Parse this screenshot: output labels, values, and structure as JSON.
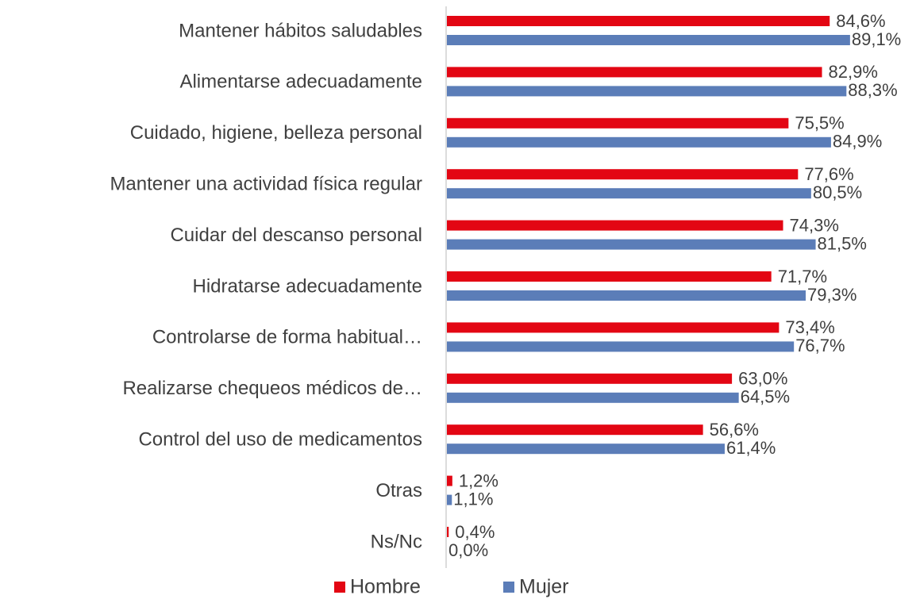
{
  "chart_data": {
    "type": "bar",
    "orientation": "horizontal",
    "categories": [
      "Mantener hábitos saludables",
      "Alimentarse adecuadamente",
      "Cuidado, higiene, belleza personal",
      "Mantener una actividad física regular",
      "Cuidar del descanso personal",
      "Hidratarse adecuadamente",
      "Controlarse de forma habitual…",
      "Realizarse chequeos médicos de…",
      "Control del uso de medicamentos",
      "Otras",
      "Ns/Nc"
    ],
    "series": [
      {
        "name": "Hombre",
        "color": "#e30613",
        "values": [
          84.6,
          82.9,
          75.5,
          77.6,
          74.3,
          71.7,
          73.4,
          63.0,
          56.6,
          1.2,
          0.4
        ],
        "value_labels": [
          "84,6%",
          "82,9%",
          "75,5%",
          "77,6%",
          "74,3%",
          "71,7%",
          "73,4%",
          "63,0%",
          "56,6%",
          "1,2%",
          "0,4%"
        ]
      },
      {
        "name": "Mujer",
        "color": "#5b7db8",
        "values": [
          89.1,
          88.3,
          84.9,
          80.5,
          81.5,
          79.3,
          76.7,
          64.5,
          61.4,
          1.1,
          0.0
        ],
        "value_labels": [
          "89,1%",
          "88,3%",
          "84,9%",
          "80,5%",
          "81,5%",
          "79,3%",
          "76,7%",
          "64,5%",
          "61,4%",
          "1,1%",
          "0,0%"
        ]
      }
    ],
    "legend": "bottom"
  }
}
